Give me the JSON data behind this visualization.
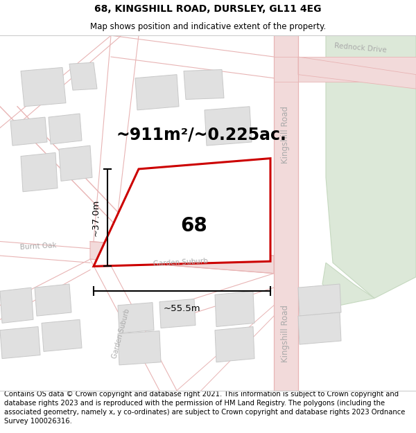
{
  "title_line1": "68, KINGSHILL ROAD, DURSLEY, GL11 4EG",
  "title_line2": "Map shows position and indicative extent of the property.",
  "footer_text": "Contains OS data © Crown copyright and database right 2021. This information is subject to Crown copyright and database rights 2023 and is reproduced with the permission of HM Land Registry. The polygons (including the associated geometry, namely x, y co-ordinates) are subject to Crown copyright and database rights 2023 Ordnance Survey 100026316.",
  "area_label": "~911m²/~0.225ac.",
  "number_label": "68",
  "width_label": "~55.5m",
  "height_label": "~37.0m",
  "map_bg": "#f7f7f7",
  "road_line_color": "#e8b4b4",
  "road_fill_color": "#f2dada",
  "plot_edge_color": "#cc0000",
  "building_fill": "#e0e0e0",
  "building_edge": "#c8c8c8",
  "green_fill": "#dce8d8",
  "road_label_color": "#aaaaaa",
  "figsize": [
    6.0,
    6.25
  ],
  "dpi": 100,
  "title_fontsize": 10,
  "subtitle_fontsize": 8.5,
  "footer_fontsize": 7.2,
  "area_fontsize": 17,
  "number_fontsize": 20,
  "dim_fontsize": 9.5,
  "road_label_fontsize": 8.5
}
